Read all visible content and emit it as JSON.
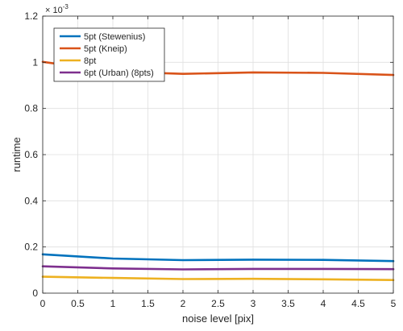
{
  "chart_data": {
    "type": "line",
    "title": "",
    "xlabel": "noise level [pix]",
    "ylabel": "runtime",
    "exponent_label": "× 10",
    "exponent_power": "-3",
    "xlim": [
      0,
      5
    ],
    "ylim": [
      0,
      1.2
    ],
    "xticks": [
      "0",
      "0.5",
      "1",
      "1.5",
      "2",
      "2.5",
      "3",
      "3.5",
      "4",
      "4.5",
      "5"
    ],
    "yticks": [
      "0",
      "0.2",
      "0.4",
      "0.6",
      "0.8",
      "1",
      "1.2"
    ],
    "grid": true,
    "legend_position": "top-left",
    "x": [
      0,
      1,
      2,
      3,
      4,
      5
    ],
    "series": [
      {
        "name": "5pt (Stewenius)",
        "color": "#0072BD",
        "values": [
          0.168,
          0.15,
          0.143,
          0.145,
          0.144,
          0.139
        ]
      },
      {
        "name": "5pt (Kneip)",
        "color": "#D95319",
        "values": [
          1.002,
          0.96,
          0.95,
          0.956,
          0.954,
          0.945
        ]
      },
      {
        "name": "8pt",
        "color": "#EDB120",
        "values": [
          0.071,
          0.066,
          0.061,
          0.062,
          0.06,
          0.057
        ]
      },
      {
        "name": "6pt (Urban) (8pts)",
        "color": "#7E2F8E",
        "values": [
          0.116,
          0.107,
          0.103,
          0.105,
          0.105,
          0.104
        ]
      }
    ]
  }
}
